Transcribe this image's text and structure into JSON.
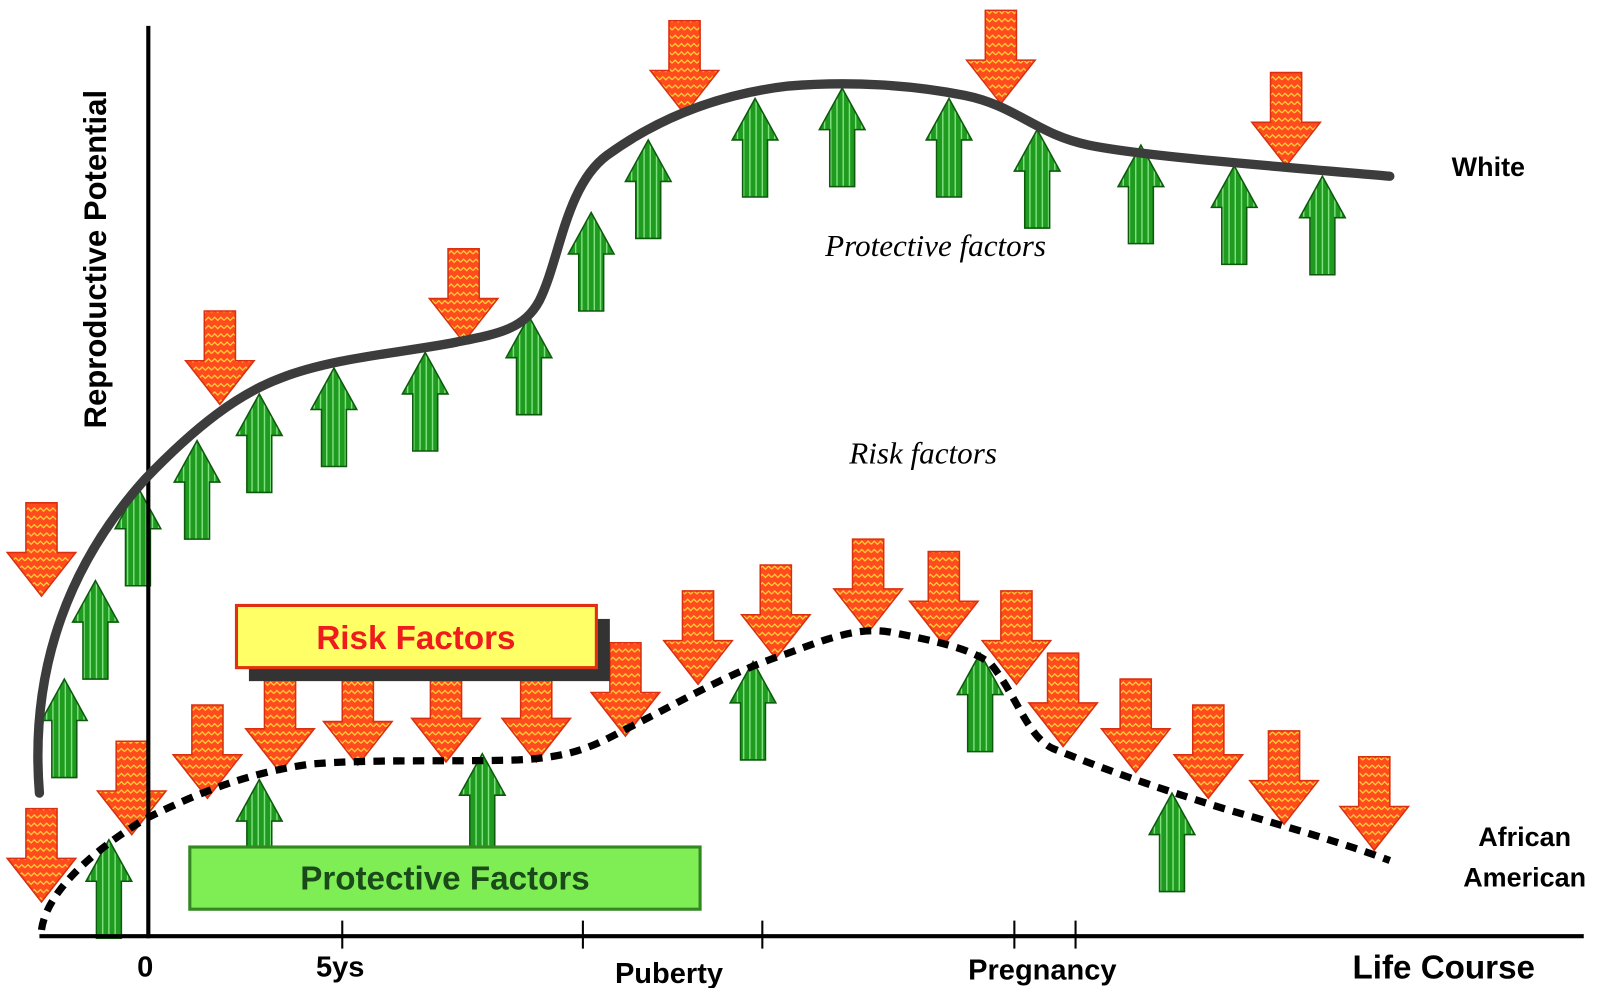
{
  "y_axis_label": "Reproductive Potential",
  "x_axis": {
    "labels": [
      "0",
      "5ys",
      "Puberty",
      "Pregnancy"
    ],
    "title": "Life Course"
  },
  "curve_labels": {
    "white": "White",
    "african_american": [
      "African",
      "American"
    ]
  },
  "annotations": {
    "protective": "Protective factors",
    "risk": "Risk factors"
  },
  "legend": {
    "risk": "Risk Factors",
    "protective": "Protective Factors"
  }
}
